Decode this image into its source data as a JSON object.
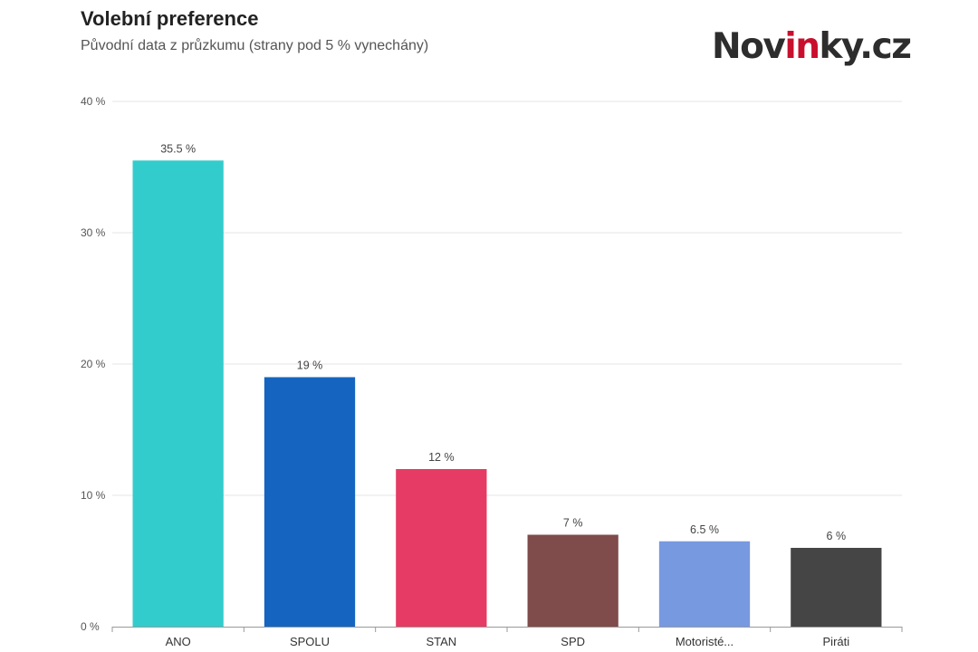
{
  "header": {
    "title": "Volební preference",
    "subtitle": "Původní data z průzkumu (strany pod 5 % vynechány)",
    "logo_part1": "Nov",
    "logo_part2": "in",
    "logo_part3": "ky.cz"
  },
  "colors": {
    "logo_dark": "#2d2d2d",
    "logo_red": "#c8102e"
  },
  "chart_data": {
    "type": "bar",
    "title": "Volební preference",
    "subtitle": "Původní data z průzkumu (strany pod 5 % vynechány)",
    "categories": [
      "ANO",
      "SPOLU",
      "STAN",
      "SPD",
      "Motoristé...",
      "Piráti"
    ],
    "values": [
      35.5,
      19,
      12,
      7,
      6.5,
      6
    ],
    "data_labels": [
      "35.5 %",
      "19 %",
      "12 %",
      "7 %",
      "6.5 %",
      "6 %"
    ],
    "colors": [
      "#33cccc",
      "#1565c0",
      "#e63b64",
      "#7f4b4b",
      "#7799e0",
      "#454545"
    ],
    "ylim": [
      0,
      40
    ],
    "yticks": [
      0,
      10,
      20,
      30,
      40
    ],
    "ytick_labels": [
      "0 %",
      "10 %",
      "20 %",
      "30 %",
      "40 %"
    ],
    "grid": true,
    "legend": "none"
  }
}
